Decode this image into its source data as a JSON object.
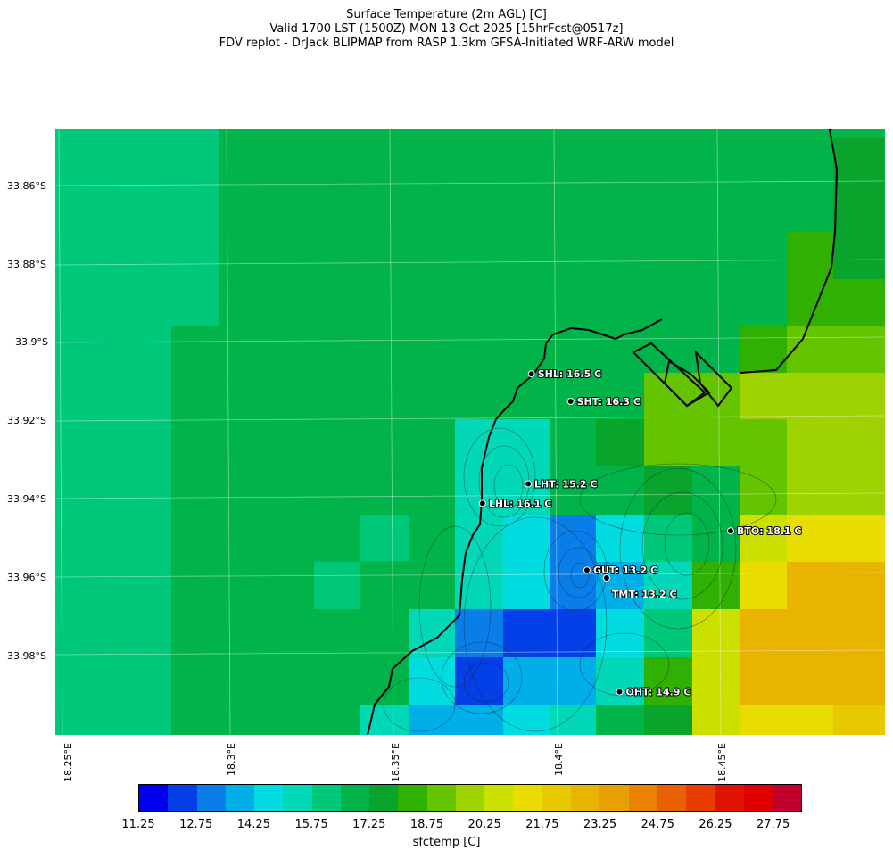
{
  "header": {
    "title_line1": "Surface Temperature (2m AGL) [C]",
    "title_line2": "Valid 1700 LST (1500Z) MON 13 Oct 2025 [15hrFcst@0517z]",
    "title_line3": "FDV replot - DrJack BLIPMAP from RASP 1.3km GFSA-Initiated WRF-ARW model"
  },
  "axes": {
    "lat_labels": [
      "33.86°S",
      "33.88°S",
      "33.9°S",
      "33.92°S",
      "33.94°S",
      "33.96°S",
      "33.98°S"
    ],
    "lon_labels": [
      "18.25°E",
      "18.3°E",
      "18.35°E",
      "18.4°E",
      "18.45°E"
    ]
  },
  "stations": [
    {
      "code": "SHL",
      "label": "SHL: 16.5 C",
      "lon": 18.392,
      "lat": -33.908,
      "temp": 16.5
    },
    {
      "code": "SHT",
      "label": "SHT: 16.3 C",
      "lon": 18.404,
      "lat": -33.915,
      "temp": 16.3
    },
    {
      "code": "LHT",
      "label": "LHT: 15.2 C",
      "lon": 18.391,
      "lat": -33.936,
      "temp": 15.2
    },
    {
      "code": "LHL",
      "label": "LHL: 16.1 C",
      "lon": 18.377,
      "lat": -33.941,
      "temp": 16.1
    },
    {
      "code": "BTO",
      "label": "BTO: 18.1 C",
      "lon": 18.453,
      "lat": -33.948,
      "temp": 18.1
    },
    {
      "code": "GUT",
      "label": "GUT: 13.2 C",
      "lon": 18.409,
      "lat": -33.958,
      "temp": 13.2
    },
    {
      "code": "TMT",
      "label": "TMT: 13.2 C",
      "lon": 18.415,
      "lat": -33.96,
      "temp": 13.2
    },
    {
      "code": "OHT",
      "label": "OHT: 14.9 C",
      "lon": 18.419,
      "lat": -33.989,
      "temp": 14.9
    }
  ],
  "colorbar": {
    "label": "sfctemp [C]",
    "ticks": [
      "11.25",
      "12.75",
      "14.25",
      "15.75",
      "17.25",
      "18.75",
      "20.25",
      "21.75",
      "23.25",
      "24.75",
      "26.25",
      "27.75"
    ],
    "colors": [
      "#0000ee",
      "#0440e8",
      "#0a7ee8",
      "#00aee8",
      "#00dce0",
      "#00d8b8",
      "#00c87a",
      "#00b44a",
      "#08a42c",
      "#30b000",
      "#64c400",
      "#9ed200",
      "#cce000",
      "#e8dc00",
      "#e8c800",
      "#e8b400",
      "#e8a000",
      "#e88200",
      "#e86000",
      "#e83c00",
      "#e01400",
      "#e00000",
      "#c0002a"
    ]
  }
}
